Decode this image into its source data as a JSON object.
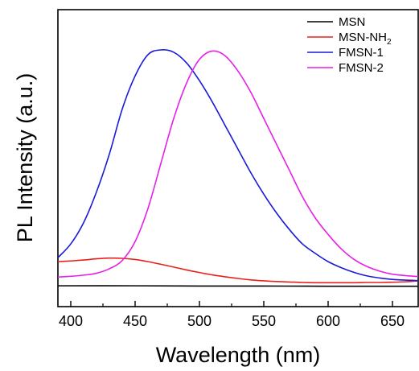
{
  "chart_data": {
    "type": "line",
    "title": "",
    "xlabel": "Wavelength (nm)",
    "ylabel": "PL Intensity (a.u.)",
    "xlim": [
      390,
      670
    ],
    "ylim": [
      0,
      1
    ],
    "x_ticks": [
      400,
      450,
      500,
      550,
      600,
      650
    ],
    "x_tick_labels": [
      "400",
      "450",
      "500",
      "550",
      "600",
      "650"
    ],
    "y_ticks_labeled": false,
    "grid": false,
    "legend_position": "top-right",
    "legend": [
      {
        "label": "MSN",
        "sub": "",
        "color": "#000000"
      },
      {
        "label": "MSN-NH",
        "sub": "2",
        "color": "#e8201c"
      },
      {
        "label": "FMSN-1",
        "sub": "",
        "color": "#1a1ad8"
      },
      {
        "label": "FMSN-2",
        "sub": "",
        "color": "#e621e6"
      }
    ],
    "series": [
      {
        "name": "MSN",
        "color": "#000000",
        "x": [
          390,
          450,
          500,
          550,
          600,
          670
        ],
        "y": [
          0.003,
          0.003,
          0.002,
          0.002,
          0.001,
          0.001
        ]
      },
      {
        "name": "MSN-NH2",
        "color": "#e8201c",
        "x": [
          390,
          400,
          410,
          420,
          430,
          440,
          450,
          460,
          470,
          480,
          490,
          500,
          510,
          520,
          530,
          540,
          550,
          560,
          570,
          580,
          590,
          600,
          610,
          620,
          630,
          640,
          650,
          660,
          670
        ],
        "y": [
          0.105,
          0.108,
          0.112,
          0.117,
          0.12,
          0.119,
          0.114,
          0.105,
          0.094,
          0.082,
          0.07,
          0.059,
          0.049,
          0.041,
          0.034,
          0.028,
          0.024,
          0.021,
          0.019,
          0.017,
          0.016,
          0.016,
          0.016,
          0.016,
          0.017,
          0.017,
          0.018,
          0.02,
          0.024
        ]
      },
      {
        "name": "FMSN-1",
        "color": "#1a1ad8",
        "x": [
          390,
          400,
          410,
          420,
          430,
          440,
          450,
          460,
          470,
          480,
          490,
          500,
          510,
          520,
          530,
          540,
          550,
          560,
          570,
          580,
          590,
          600,
          610,
          620,
          630,
          640,
          650,
          660,
          670
        ],
        "y": [
          0.122,
          0.18,
          0.27,
          0.4,
          0.56,
          0.75,
          0.89,
          0.98,
          1.0,
          0.99,
          0.945,
          0.87,
          0.78,
          0.68,
          0.58,
          0.48,
          0.39,
          0.31,
          0.24,
          0.18,
          0.14,
          0.105,
          0.08,
          0.06,
          0.045,
          0.036,
          0.03,
          0.027,
          0.025
        ]
      },
      {
        "name": "FMSN-2",
        "color": "#e621e6",
        "x": [
          390,
          400,
          410,
          420,
          430,
          440,
          450,
          460,
          470,
          480,
          490,
          500,
          510,
          520,
          530,
          540,
          550,
          560,
          570,
          580,
          590,
          600,
          610,
          620,
          630,
          640,
          650,
          660,
          670
        ],
        "y": [
          0.04,
          0.043,
          0.048,
          0.056,
          0.075,
          0.11,
          0.19,
          0.33,
          0.52,
          0.71,
          0.86,
          0.96,
          0.995,
          0.975,
          0.91,
          0.82,
          0.71,
          0.6,
          0.49,
          0.38,
          0.29,
          0.22,
          0.16,
          0.115,
          0.085,
          0.065,
          0.052,
          0.046,
          0.042
        ]
      }
    ]
  }
}
